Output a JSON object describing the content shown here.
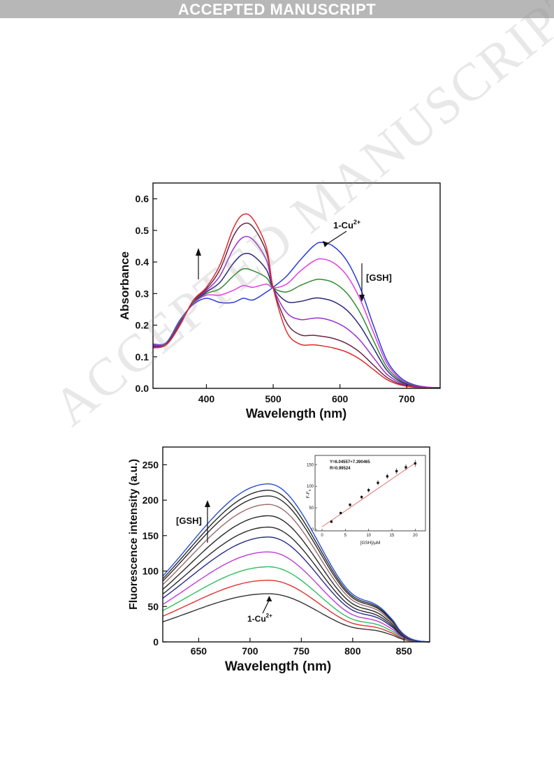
{
  "banner": "ACCEPTED MANUSCRIPT",
  "watermark": "ACCEPTED MANUSCRIPT",
  "chart_data": [
    {
      "type": "line",
      "xlabel": "Wavelength (nm)",
      "ylabel": "Absorbance",
      "xlim": [
        320,
        750
      ],
      "ylim": [
        0.0,
        0.65
      ],
      "xticks": [
        400,
        500,
        600,
        700
      ],
      "yticks": [
        0.0,
        0.1,
        0.2,
        0.3,
        0.4,
        0.5,
        0.6
      ],
      "grid": false,
      "annotations": [
        {
          "text": "1-Cu",
          "sup": "2+",
          "arrow_to": [
            572,
            0.462
          ]
        },
        {
          "text": "[GSH]",
          "arrow": "down",
          "near_x": 631
        },
        {
          "text": "",
          "arrow": "up",
          "near_x": 386
        }
      ],
      "series": [
        {
          "color": "#2a3ad8",
          "x": [
            320,
            340,
            360,
            380,
            400,
            420,
            440,
            455,
            470,
            490,
            500,
            520,
            540,
            560,
            572,
            590,
            610,
            630,
            650,
            670,
            690,
            710,
            730,
            750
          ],
          "y": [
            0.14,
            0.145,
            0.215,
            0.265,
            0.285,
            0.272,
            0.272,
            0.285,
            0.28,
            0.305,
            0.32,
            0.355,
            0.405,
            0.45,
            0.462,
            0.45,
            0.405,
            0.32,
            0.2,
            0.09,
            0.035,
            0.012,
            0.004,
            0.002
          ]
        },
        {
          "color": "#e43be2",
          "x": [
            320,
            340,
            360,
            380,
            400,
            420,
            440,
            455,
            470,
            490,
            500,
            520,
            540,
            560,
            572,
            590,
            610,
            630,
            650,
            670,
            690,
            710,
            730,
            750
          ],
          "y": [
            0.138,
            0.143,
            0.21,
            0.268,
            0.295,
            0.295,
            0.31,
            0.325,
            0.32,
            0.33,
            0.318,
            0.33,
            0.37,
            0.402,
            0.41,
            0.398,
            0.358,
            0.283,
            0.178,
            0.08,
            0.03,
            0.01,
            0.004,
            0.002
          ]
        },
        {
          "color": "#2e8b2e",
          "x": [
            320,
            340,
            360,
            380,
            400,
            420,
            440,
            455,
            470,
            490,
            500,
            520,
            540,
            560,
            572,
            590,
            610,
            630,
            650,
            670,
            690,
            710,
            730,
            750
          ],
          "y": [
            0.136,
            0.142,
            0.208,
            0.27,
            0.3,
            0.315,
            0.355,
            0.378,
            0.372,
            0.35,
            0.318,
            0.305,
            0.325,
            0.342,
            0.345,
            0.335,
            0.302,
            0.24,
            0.152,
            0.068,
            0.026,
            0.009,
            0.003,
            0.002
          ]
        },
        {
          "color": "#28287a",
          "x": [
            320,
            340,
            360,
            380,
            400,
            420,
            440,
            455,
            470,
            490,
            500,
            520,
            540,
            560,
            572,
            590,
            610,
            630,
            650,
            670,
            690,
            710,
            730,
            750
          ],
          "y": [
            0.134,
            0.141,
            0.205,
            0.272,
            0.305,
            0.335,
            0.395,
            0.425,
            0.42,
            0.375,
            0.318,
            0.275,
            0.275,
            0.285,
            0.285,
            0.275,
            0.248,
            0.198,
            0.128,
            0.058,
            0.022,
            0.008,
            0.003,
            0.002
          ]
        },
        {
          "color": "#9b30cc",
          "x": [
            320,
            340,
            360,
            380,
            400,
            420,
            440,
            455,
            470,
            490,
            500,
            520,
            540,
            560,
            572,
            590,
            610,
            630,
            650,
            670,
            690,
            710,
            730,
            750
          ],
          "y": [
            0.132,
            0.14,
            0.203,
            0.274,
            0.31,
            0.355,
            0.44,
            0.478,
            0.47,
            0.405,
            0.318,
            0.24,
            0.218,
            0.222,
            0.222,
            0.212,
            0.19,
            0.152,
            0.098,
            0.045,
            0.018,
            0.007,
            0.003,
            0.002
          ]
        },
        {
          "color": "#6a2548",
          "x": [
            320,
            340,
            360,
            380,
            400,
            420,
            440,
            455,
            470,
            490,
            500,
            520,
            540,
            560,
            572,
            590,
            610,
            630,
            650,
            670,
            690,
            710,
            730,
            750
          ],
          "y": [
            0.13,
            0.139,
            0.2,
            0.276,
            0.315,
            0.375,
            0.48,
            0.52,
            0.51,
            0.43,
            0.318,
            0.208,
            0.17,
            0.168,
            0.165,
            0.158,
            0.142,
            0.114,
            0.074,
            0.035,
            0.014,
            0.005,
            0.002,
            0.001
          ]
        },
        {
          "color": "#e02a2a",
          "x": [
            320,
            340,
            360,
            380,
            400,
            420,
            440,
            455,
            470,
            490,
            500,
            520,
            540,
            560,
            572,
            590,
            610,
            630,
            650,
            670,
            690,
            710,
            730,
            750
          ],
          "y": [
            0.128,
            0.138,
            0.198,
            0.278,
            0.32,
            0.39,
            0.505,
            0.55,
            0.535,
            0.445,
            0.318,
            0.18,
            0.14,
            0.138,
            0.135,
            0.128,
            0.115,
            0.092,
            0.06,
            0.028,
            0.011,
            0.004,
            0.002,
            0.001
          ]
        }
      ]
    },
    {
      "type": "line",
      "xlabel": "Wavelength (nm)",
      "ylabel": "Fluorescence intensity (a.u.)",
      "xlim": [
        615,
        875
      ],
      "ylim": [
        0,
        275
      ],
      "xticks": [
        650,
        700,
        750,
        800,
        850
      ],
      "yticks": [
        0,
        50,
        100,
        150,
        200,
        250
      ],
      "grid": false,
      "peak_x": 718,
      "peaks": [
        68,
        87,
        106,
        127,
        148,
        162,
        178,
        194,
        206,
        214,
        223
      ],
      "colors": [
        "#333333",
        "#e03030",
        "#2fbf5f",
        "#bd3cd6",
        "#2a2a8a",
        "#2a2a2a",
        "#2a2a2a",
        "#9b6b6b",
        "#2a2a2a",
        "#2a2a2a",
        "#2a4fd0"
      ],
      "annotations": [
        {
          "text": "1-Cu",
          "sup": "2+",
          "arrow_to": [
            718,
            68
          ]
        },
        {
          "text": "[GSH]",
          "arrow": "up",
          "near_x": 658
        }
      ],
      "inset": {
        "type": "scatter",
        "xlabel": "[GSH]/μM",
        "ylabel": "F-F",
        "ylabel_sub": "0",
        "xlim": [
          0,
          21
        ],
        "ylim": [
          0,
          165
        ],
        "xticks": [
          0,
          5,
          10,
          15,
          20
        ],
        "yticks": [
          0,
          50,
          100,
          150
        ],
        "equation": "Y=6.04557+7.390465",
        "r_text": "R=0.99524",
        "fit": {
          "x": [
            0,
            20
          ],
          "y": [
            6.05,
            153.9
          ]
        },
        "points": [
          {
            "x": 2,
            "y": 18,
            "err": 3
          },
          {
            "x": 4,
            "y": 38,
            "err": 3
          },
          {
            "x": 6,
            "y": 57,
            "err": 4
          },
          {
            "x": 8.5,
            "y": 75,
            "err": 4
          },
          {
            "x": 10,
            "y": 91,
            "err": 5
          },
          {
            "x": 12,
            "y": 108,
            "err": 6
          },
          {
            "x": 14,
            "y": 123,
            "err": 6
          },
          {
            "x": 16,
            "y": 135,
            "err": 7
          },
          {
            "x": 18,
            "y": 144,
            "err": 7
          },
          {
            "x": 20,
            "y": 153,
            "err": 8
          }
        ]
      }
    }
  ]
}
